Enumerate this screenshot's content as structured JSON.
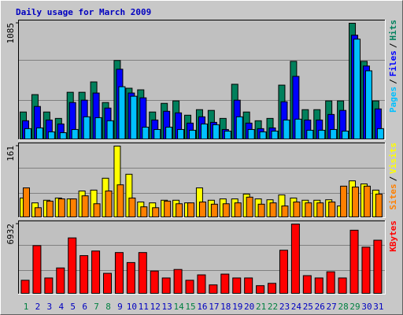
{
  "chart_data": [
    {
      "type": "bar",
      "title": "Daily usage for March 2009",
      "legend_separator": "/",
      "ylim": [
        0,
        1085
      ],
      "yticks": [
        1085
      ],
      "series": [
        {
          "name": "Hits",
          "color": "#00805c",
          "values": [
            253,
            416,
            253,
            193,
            438,
            438,
            535,
            342,
            736,
            476,
            461,
            253,
            334,
            357,
            223,
            275,
            268,
            193,
            513,
            253,
            171,
            193,
            505,
            728,
            275,
            275,
            357,
            357,
            1085,
            728,
            357
          ]
        },
        {
          "name": "Files",
          "color": "#0000ff",
          "values": [
            171,
            305,
            178,
            141,
            342,
            364,
            431,
            290,
            654,
            431,
            386,
            178,
            260,
            245,
            149,
            208,
            156,
            89,
            364,
            149,
            97,
            104,
            349,
            587,
            178,
            178,
            230,
            268,
            973,
            684,
            282
          ]
        },
        {
          "name": "Pages",
          "color": "#00c0ff",
          "values": [
            97,
            104,
            67,
            59,
            89,
            208,
            200,
            171,
            490,
            401,
            111,
            89,
            111,
            89,
            82,
            141,
            134,
            74,
            208,
            89,
            67,
            74,
            178,
            186,
            82,
            82,
            89,
            74,
            936,
            639,
            97
          ]
        }
      ]
    },
    {
      "type": "bar",
      "legend_separator": "/",
      "ylim": [
        0,
        161
      ],
      "yticks": [
        161
      ],
      "series": [
        {
          "name": "Visits",
          "color": "#ffff00",
          "values": [
            43,
            32,
            38,
            43,
            41,
            59,
            61,
            88,
            161,
            97,
            34,
            32,
            38,
            38,
            32,
            66,
            38,
            41,
            41,
            52,
            41,
            39,
            50,
            43,
            38,
            38,
            39,
            25,
            82,
            75,
            61
          ]
        },
        {
          "name": "Sites",
          "color": "#ff8000",
          "values": [
            66,
            21,
            36,
            41,
            41,
            48,
            30,
            59,
            73,
            43,
            23,
            21,
            36,
            30,
            32,
            34,
            29,
            30,
            32,
            45,
            29,
            32,
            25,
            34,
            32,
            32,
            34,
            70,
            68,
            70,
            52
          ]
        }
      ]
    },
    {
      "type": "bar",
      "ylim": [
        0,
        6932
      ],
      "yticks": [
        6932
      ],
      "categories": [
        "1",
        "2",
        "3",
        "4",
        "5",
        "6",
        "7",
        "8",
        "9",
        "10",
        "11",
        "12",
        "13",
        "14",
        "15",
        "16",
        "17",
        "18",
        "19",
        "20",
        "21",
        "22",
        "23",
        "24",
        "25",
        "26",
        "27",
        "28",
        "29",
        "30",
        "31"
      ],
      "category_colors": [
        "#008040",
        "#0000c0",
        "#0000c0",
        "#0000c0",
        "#0000c0",
        "#0000c0",
        "#008040",
        "#008040",
        "#0000c0",
        "#0000c0",
        "#0000c0",
        "#0000c0",
        "#0000c0",
        "#008040",
        "#008040",
        "#0000c0",
        "#0000c0",
        "#0000c0",
        "#0000c0",
        "#0000c0",
        "#008040",
        "#008040",
        "#0000c0",
        "#0000c0",
        "#0000c0",
        "#0000c0",
        "#0000c0",
        "#008040",
        "#008040",
        "#0000c0",
        "#0000c0"
      ],
      "series": [
        {
          "name": "KBytes",
          "color": "#ff0000",
          "values": [
            1309,
            4775,
            1540,
            2542,
            5546,
            3774,
            4236,
            2003,
            4082,
            3081,
            4082,
            2234,
            1540,
            2388,
            1309,
            1849,
            847,
            1926,
            1540,
            1540,
            770,
            1001,
            4313,
            6932,
            1772,
            1540,
            2157,
            1540,
            6316,
            4621,
            5315
          ]
        }
      ]
    }
  ]
}
